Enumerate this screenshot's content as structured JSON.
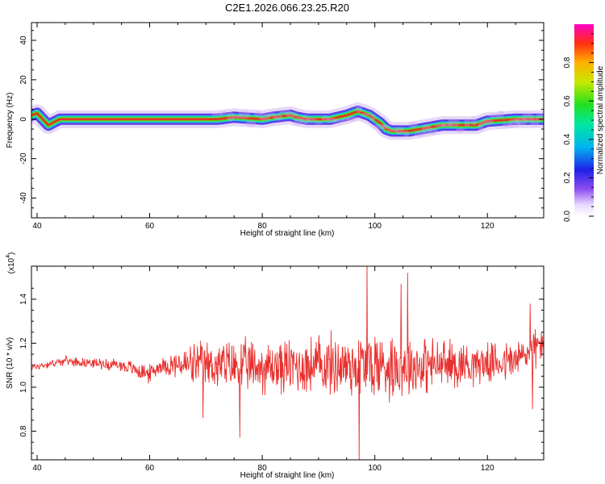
{
  "figure_title": "C2E1.2026.066.23.25.R20",
  "colors": {
    "snr_line": "#e8302e",
    "ridge": "#e0332e",
    "ridge_outline": "#a8a000",
    "halo_outer": "#caa8f0",
    "halo_mid": "#4a30e8",
    "halo_inner": "#1ec8d8",
    "halo_core": "#35e83a",
    "frame": "#000000"
  },
  "chart_data": [
    {
      "type": "heatmap",
      "title": "",
      "xlabel": "Height of straight line (km)",
      "ylabel": "Frequency (Hz)",
      "xlim": [
        39,
        130
      ],
      "ylim": [
        -50,
        49
      ],
      "xticks": [
        40,
        60,
        80,
        100,
        120
      ],
      "yticks": [
        -40,
        -20,
        0,
        20,
        40
      ],
      "ridge_frequency_hz": {
        "height_km": [
          39,
          40,
          41,
          42,
          44,
          50,
          60,
          72,
          75,
          80,
          82,
          85,
          86,
          88,
          92,
          95,
          97,
          99,
          100,
          101,
          102,
          103,
          104,
          106,
          108,
          110,
          112,
          114,
          118,
          120,
          125,
          130
        ],
        "freq_hz": [
          2,
          3,
          0,
          -3,
          0,
          0,
          0,
          0,
          1,
          0,
          1,
          2,
          1,
          0,
          0,
          2,
          4,
          2,
          0,
          -2,
          -5,
          -6,
          -6,
          -6,
          -5,
          -4,
          -3,
          -3,
          -3,
          -1,
          0,
          0
        ]
      },
      "colorbar": {
        "label": "Normalized spectral amplitude",
        "range": [
          0,
          1
        ],
        "ticks": [
          "0.0",
          "0.2",
          "0.4",
          "0.6",
          "0.8"
        ],
        "tick_values": [
          0.0,
          0.2,
          0.4,
          0.6,
          0.8
        ]
      }
    },
    {
      "type": "line",
      "title": "",
      "xlabel": "Height of straight line (km)",
      "ylabel": "SNR (10 * v/v)",
      "y_multiplier_label": "(x10",
      "y_multiplier_exp": "4",
      "y_multiplier_close": ")",
      "xlim": [
        39,
        130
      ],
      "ylim": [
        0.67,
        1.55
      ],
      "xticks": [
        40,
        60,
        80,
        100,
        120
      ],
      "yticks": [
        0.8,
        1.0,
        1.2,
        1.4
      ],
      "series": [
        {
          "name": "SNR",
          "x_range_km": [
            39,
            130
          ],
          "n_points": 1100,
          "baseline_x": [
            39,
            45,
            55,
            60,
            62,
            70,
            80,
            90,
            100,
            110,
            120,
            125,
            130
          ],
          "baseline_y": [
            1.09,
            1.12,
            1.1,
            1.06,
            1.1,
            1.1,
            1.09,
            1.1,
            1.1,
            1.1,
            1.11,
            1.12,
            1.2
          ],
          "amplitude_x": [
            39,
            50,
            60,
            62,
            68,
            75,
            85,
            95,
            100,
            105,
            115,
            120,
            125,
            130
          ],
          "amplitude_y": [
            0.02,
            0.025,
            0.05,
            0.04,
            0.12,
            0.14,
            0.15,
            0.18,
            0.2,
            0.17,
            0.13,
            0.1,
            0.12,
            0.1
          ],
          "peaks": [
            {
              "x": 98.6,
              "y": 1.55
            },
            {
              "x": 97.2,
              "y": 0.67
            },
            {
              "x": 105.8,
              "y": 1.52
            },
            {
              "x": 104.7,
              "y": 1.47
            },
            {
              "x": 127.6,
              "y": 1.38
            },
            {
              "x": 128.0,
              "y": 0.9
            },
            {
              "x": 76.0,
              "y": 0.77
            },
            {
              "x": 69.5,
              "y": 0.86
            }
          ]
        }
      ]
    }
  ]
}
